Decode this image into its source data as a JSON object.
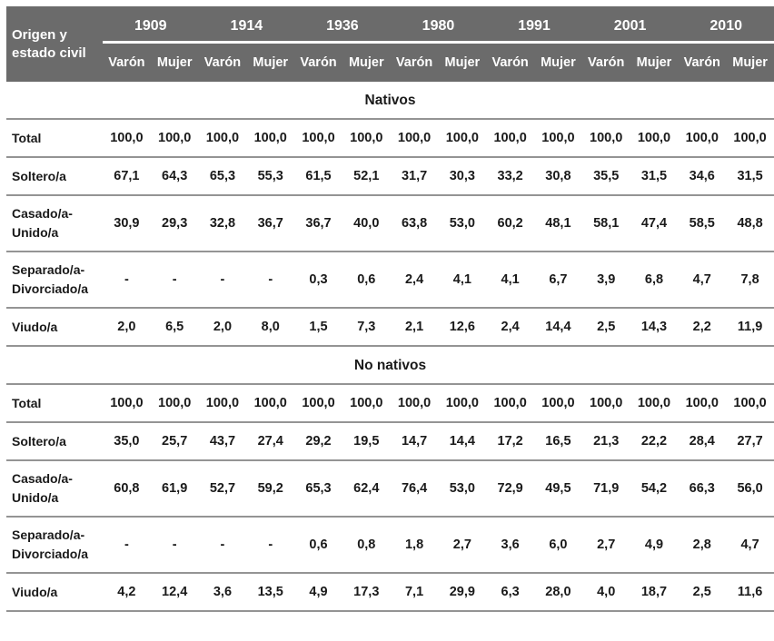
{
  "header": {
    "origin_label": "Origen y estado civil",
    "years": [
      "1909",
      "1914",
      "1936",
      "1980",
      "1991",
      "2001",
      "2010"
    ],
    "genders": [
      "Varón",
      "Mujer"
    ]
  },
  "sections": [
    {
      "title": "Nativos",
      "rows": [
        {
          "label": "Total",
          "values": [
            "100,0",
            "100,0",
            "100,0",
            "100,0",
            "100,0",
            "100,0",
            "100,0",
            "100,0",
            "100,0",
            "100,0",
            "100,0",
            "100,0",
            "100,0",
            "100,0"
          ]
        },
        {
          "label": "Soltero/a",
          "values": [
            "67,1",
            "64,3",
            "65,3",
            "55,3",
            "61,5",
            "52,1",
            "31,7",
            "30,3",
            "33,2",
            "30,8",
            "35,5",
            "31,5",
            "34,6",
            "31,5"
          ]
        },
        {
          "label": "Casado/a-Unido/a",
          "values": [
            "30,9",
            "29,3",
            "32,8",
            "36,7",
            "36,7",
            "40,0",
            "63,8",
            "53,0",
            "60,2",
            "48,1",
            "58,1",
            "47,4",
            "58,5",
            "48,8"
          ]
        },
        {
          "label": "Separado/a-Divorciado/a",
          "values": [
            "-",
            "-",
            "-",
            "-",
            "0,3",
            "0,6",
            "2,4",
            "4,1",
            "4,1",
            "6,7",
            "3,9",
            "6,8",
            "4,7",
            "7,8"
          ]
        },
        {
          "label": "Viudo/a",
          "values": [
            "2,0",
            "6,5",
            "2,0",
            "8,0",
            "1,5",
            "7,3",
            "2,1",
            "12,6",
            "2,4",
            "14,4",
            "2,5",
            "14,3",
            "2,2",
            "11,9"
          ]
        }
      ]
    },
    {
      "title": "No nativos",
      "rows": [
        {
          "label": "Total",
          "values": [
            "100,0",
            "100,0",
            "100,0",
            "100,0",
            "100,0",
            "100,0",
            "100,0",
            "100,0",
            "100,0",
            "100,0",
            "100,0",
            "100,0",
            "100,0",
            "100,0"
          ]
        },
        {
          "label": "Soltero/a",
          "values": [
            "35,0",
            "25,7",
            "43,7",
            "27,4",
            "29,2",
            "19,5",
            "14,7",
            "14,4",
            "17,2",
            "16,5",
            "21,3",
            "22,2",
            "28,4",
            "27,7"
          ]
        },
        {
          "label": "Casado/a-Unido/a",
          "values": [
            "60,8",
            "61,9",
            "52,7",
            "59,2",
            "65,3",
            "62,4",
            "76,4",
            "53,0",
            "72,9",
            "49,5",
            "71,9",
            "54,2",
            "66,3",
            "56,0"
          ]
        },
        {
          "label": "Separado/a-Divorciado/a",
          "values": [
            "-",
            "-",
            "-",
            "-",
            "0,6",
            "0,8",
            "1,8",
            "2,7",
            "3,6",
            "6,0",
            "2,7",
            "4,9",
            "2,8",
            "4,7"
          ]
        },
        {
          "label": "Viudo/a",
          "values": [
            "4,2",
            "12,4",
            "3,6",
            "13,5",
            "4,9",
            "17,3",
            "7,1",
            "29,9",
            "6,3",
            "28,0",
            "4,0",
            "18,7",
            "2,5",
            "11,6"
          ]
        }
      ]
    }
  ],
  "colors": {
    "header_bg": "#6b6b6b",
    "header_text": "#ffffff",
    "divider": "#949494",
    "text": "#1a1a1a"
  }
}
